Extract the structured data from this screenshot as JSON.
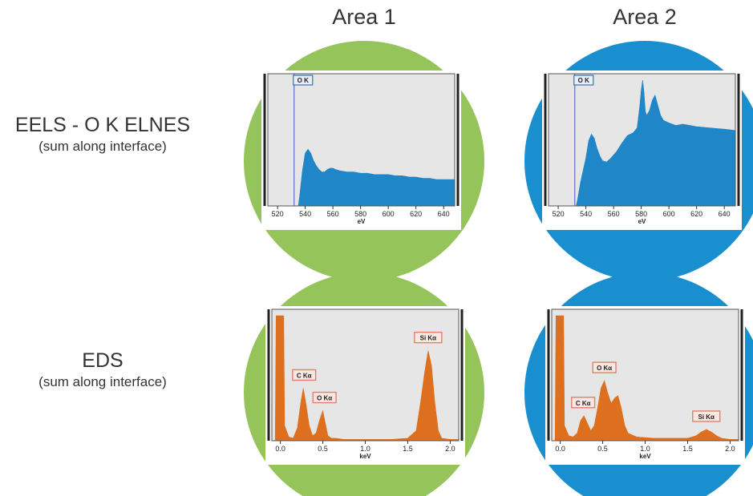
{
  "columns": [
    "Area 1",
    "Area 2"
  ],
  "rows": [
    {
      "title": "EELS - O K ELNES",
      "subtitle": "(sum along interface)"
    },
    {
      "title": "EDS",
      "subtitle": "(sum along interface)"
    }
  ],
  "colors": {
    "area1_circle": "#94c45a",
    "area2_circle": "#1a8fcf",
    "eels_fill": "#1f86c8",
    "eds_fill": "#dd6f1e",
    "plot_bg": "#e6e6e6",
    "eels_label_border": "#3a6fc0",
    "eds_label_border": "#e08070"
  },
  "chart_data": [
    {
      "type": "area",
      "panel": "EELS Area 1",
      "xlabel": "eV",
      "xlim": [
        513,
        648
      ],
      "ylim": [
        0,
        1
      ],
      "xticks": [
        520,
        540,
        560,
        580,
        600,
        620,
        640
      ],
      "edge_marker": {
        "x": 532,
        "label": "O K"
      },
      "x": [
        513,
        535,
        536,
        538,
        540,
        542,
        544,
        546,
        548,
        550,
        552,
        554,
        556,
        558,
        560,
        562,
        565,
        570,
        575,
        580,
        585,
        590,
        595,
        600,
        605,
        610,
        615,
        620,
        625,
        630,
        635,
        640,
        645,
        648
      ],
      "values": [
        0,
        0,
        0.08,
        0.28,
        0.42,
        0.45,
        0.42,
        0.36,
        0.32,
        0.29,
        0.27,
        0.27,
        0.29,
        0.3,
        0.3,
        0.29,
        0.28,
        0.27,
        0.27,
        0.26,
        0.26,
        0.25,
        0.25,
        0.25,
        0.24,
        0.24,
        0.23,
        0.23,
        0.22,
        0.22,
        0.21,
        0.21,
        0.21,
        0.21
      ]
    },
    {
      "type": "area",
      "panel": "EELS Area 2",
      "xlabel": "eV",
      "xlim": [
        513,
        648
      ],
      "ylim": [
        0,
        1
      ],
      "xticks": [
        520,
        540,
        560,
        580,
        600,
        620,
        640
      ],
      "edge_marker": {
        "x": 532,
        "label": "O K"
      },
      "x": [
        513,
        533,
        534,
        536,
        538,
        540,
        542,
        544,
        546,
        548,
        550,
        552,
        555,
        558,
        562,
        566,
        570,
        574,
        577,
        579,
        580,
        581,
        582,
        583,
        584,
        586,
        588,
        590,
        592,
        594,
        596,
        600,
        605,
        610,
        620,
        630,
        640,
        648
      ],
      "values": [
        0,
        0,
        0.05,
        0.18,
        0.28,
        0.38,
        0.52,
        0.57,
        0.54,
        0.46,
        0.4,
        0.36,
        0.35,
        0.38,
        0.43,
        0.5,
        0.56,
        0.58,
        0.62,
        0.8,
        0.92,
        1.0,
        0.9,
        0.75,
        0.72,
        0.76,
        0.84,
        0.88,
        0.8,
        0.72,
        0.68,
        0.66,
        0.64,
        0.65,
        0.63,
        0.62,
        0.61,
        0.6
      ]
    },
    {
      "type": "area",
      "panel": "EDS Area 1",
      "xlabel": "keV",
      "xlim": [
        -0.1,
        2.1
      ],
      "ylim": [
        0,
        1
      ],
      "xticks": [
        "0.0",
        "0.5",
        "1.0",
        "1.5",
        "2.0"
      ],
      "x": [
        -0.1,
        -0.06,
        -0.05,
        0.04,
        0.05,
        0.1,
        0.15,
        0.2,
        0.24,
        0.27,
        0.3,
        0.34,
        0.38,
        0.42,
        0.46,
        0.5,
        0.53,
        0.56,
        0.6,
        0.65,
        0.75,
        0.9,
        1.1,
        1.3,
        1.5,
        1.6,
        1.65,
        1.7,
        1.74,
        1.78,
        1.82,
        1.86,
        1.9,
        2.0,
        2.1
      ],
      "values": [
        0,
        0,
        1.0,
        1.0,
        0.12,
        0.03,
        0.02,
        0.1,
        0.3,
        0.42,
        0.3,
        0.12,
        0.04,
        0.06,
        0.16,
        0.24,
        0.14,
        0.04,
        0.02,
        0.02,
        0.01,
        0.01,
        0.01,
        0.01,
        0.02,
        0.08,
        0.3,
        0.55,
        0.72,
        0.6,
        0.3,
        0.08,
        0.02,
        0.01,
        0.01
      ],
      "peak_labels": [
        {
          "label": "C Kα",
          "x": 0.28
        },
        {
          "label": "O Kα",
          "x": 0.52
        },
        {
          "label": "Si Kα",
          "x": 1.74
        }
      ]
    },
    {
      "type": "area",
      "panel": "EDS Area 2",
      "xlabel": "keV",
      "xlim": [
        -0.1,
        2.1
      ],
      "ylim": [
        0,
        1
      ],
      "xticks": [
        "0.0",
        "0.5",
        "1.0",
        "1.5",
        "2.0"
      ],
      "x": [
        -0.1,
        -0.06,
        -0.05,
        0.04,
        0.05,
        0.1,
        0.15,
        0.2,
        0.24,
        0.28,
        0.32,
        0.36,
        0.4,
        0.44,
        0.48,
        0.52,
        0.56,
        0.6,
        0.64,
        0.68,
        0.72,
        0.76,
        0.8,
        0.9,
        1.1,
        1.3,
        1.5,
        1.6,
        1.66,
        1.72,
        1.78,
        1.84,
        1.9,
        2.0,
        2.1
      ],
      "values": [
        0,
        0,
        1.0,
        1.0,
        0.12,
        0.04,
        0.03,
        0.06,
        0.16,
        0.2,
        0.14,
        0.08,
        0.12,
        0.26,
        0.42,
        0.48,
        0.38,
        0.3,
        0.34,
        0.36,
        0.26,
        0.12,
        0.06,
        0.03,
        0.02,
        0.02,
        0.02,
        0.04,
        0.07,
        0.09,
        0.07,
        0.04,
        0.02,
        0.01,
        0.01
      ],
      "peak_labels": [
        {
          "label": "C Kα",
          "x": 0.27
        },
        {
          "label": "O Kα",
          "x": 0.52
        },
        {
          "label": "Si Kα",
          "x": 1.72
        }
      ]
    }
  ]
}
